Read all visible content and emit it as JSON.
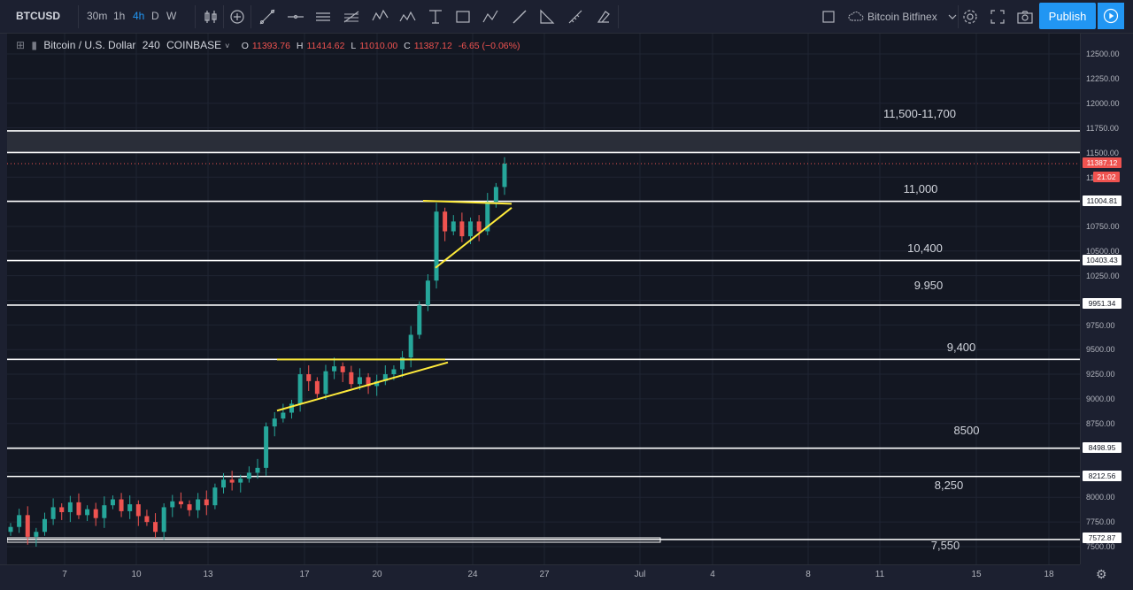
{
  "toolbar": {
    "symbol": "BTCUSD",
    "timeframes": [
      "30m",
      "1h",
      "4h",
      "D",
      "W"
    ],
    "active_timeframe": "4h",
    "compare_exchange": "Bitcoin Bitfinex",
    "publish_label": "Publish",
    "accent_color": "#2196f3"
  },
  "legend": {
    "title": "Bitcoin / U.S. Dollar",
    "interval": "240",
    "exchange": "COINBASE",
    "open_label": "O",
    "open": "11393.76",
    "high_label": "H",
    "high": "11414.62",
    "low_label": "L",
    "low": "11010.00",
    "close_label": "C",
    "close": "11387.12",
    "change": "-6.65 (−0.06%)"
  },
  "price_axis": {
    "ticks": [
      "12500.00",
      "12250.00",
      "12000.00",
      "11750.00",
      "11500.00",
      "11250.00",
      "10750.00",
      "10500.00",
      "10250.00",
      "9750.00",
      "9500.00",
      "9250.00",
      "9000.00",
      "8750.00",
      "8000.00",
      "7750.00",
      "7500.00"
    ],
    "tags": {
      "last_price": "11387.12",
      "countdown": "21:02",
      "level_11000": "11004.81",
      "level_10400": "10403.43",
      "level_9950": "9951.34",
      "level_8500": "8498.95",
      "level_8250": "8212.56",
      "level_7550": "7572.87"
    },
    "colors": {
      "down": "#ef5350",
      "up": "#26a69a"
    }
  },
  "time_axis": {
    "ticks": [
      "7",
      "10",
      "13",
      "17",
      "20",
      "24",
      "27",
      "Jul",
      "4",
      "8",
      "11",
      "15",
      "18"
    ]
  },
  "levels": {
    "zone_label": "11,500-11,700",
    "l11000": "11,000",
    "l10400": "10,400",
    "l9950": "9.950",
    "l9400": "9,400",
    "l8500": "8500",
    "l8250": "8,250",
    "l7550": "7,550"
  },
  "chart_data": {
    "type": "candlestick",
    "symbol": "BTCUSD",
    "interval": "240",
    "price_range": [
      7400,
      12700
    ],
    "annotations": {
      "horizontal_lines": [
        11700,
        11500,
        11004.81,
        10403.43,
        9951.34,
        9400,
        8498.95,
        8212.56,
        7572.87
      ],
      "triangles": [
        {
          "resistance": 9400,
          "support_from": 8900,
          "support_to": 9380
        },
        {
          "resistance": 11000,
          "support_from": 10320,
          "support_to": 10930
        }
      ]
    },
    "series": [
      {
        "name": "price",
        "close": [
          7700,
          7820,
          7600,
          7650,
          7780,
          7900,
          7850,
          7950,
          7820,
          7880,
          7790,
          7920,
          7980,
          7860,
          7930,
          7810,
          7750,
          7650,
          7900,
          7960,
          7930,
          7870,
          7980,
          7920,
          8100,
          8180,
          8150,
          8190,
          8250,
          8300,
          8720,
          8800,
          8860,
          8950,
          9250,
          9180,
          9050,
          9280,
          9330,
          9270,
          9150,
          9220,
          9130,
          9180,
          9250,
          9300,
          9420,
          9650,
          9950,
          10200,
          10900,
          10700,
          10800,
          10650,
          10800,
          10700,
          11000,
          11150,
          11387
        ]
      }
    ]
  }
}
